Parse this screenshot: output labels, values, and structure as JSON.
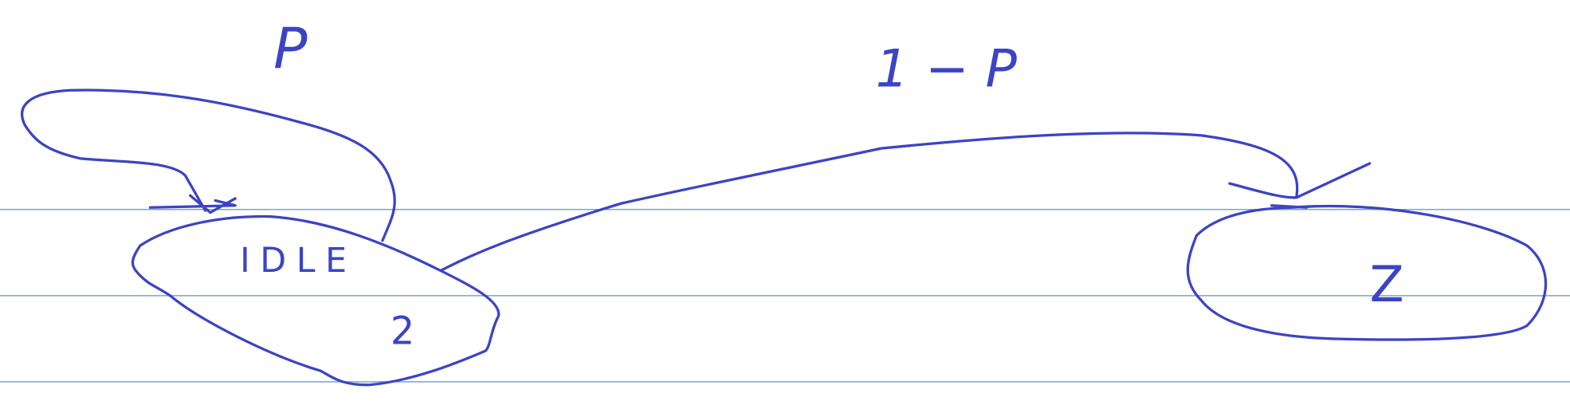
{
  "nodes": [
    {
      "label": "IDLE",
      "sublabel": "2"
    },
    {
      "label": "Z"
    }
  ],
  "edges": [
    {
      "label": "P"
    },
    {
      "label": "1 − P"
    }
  ]
}
